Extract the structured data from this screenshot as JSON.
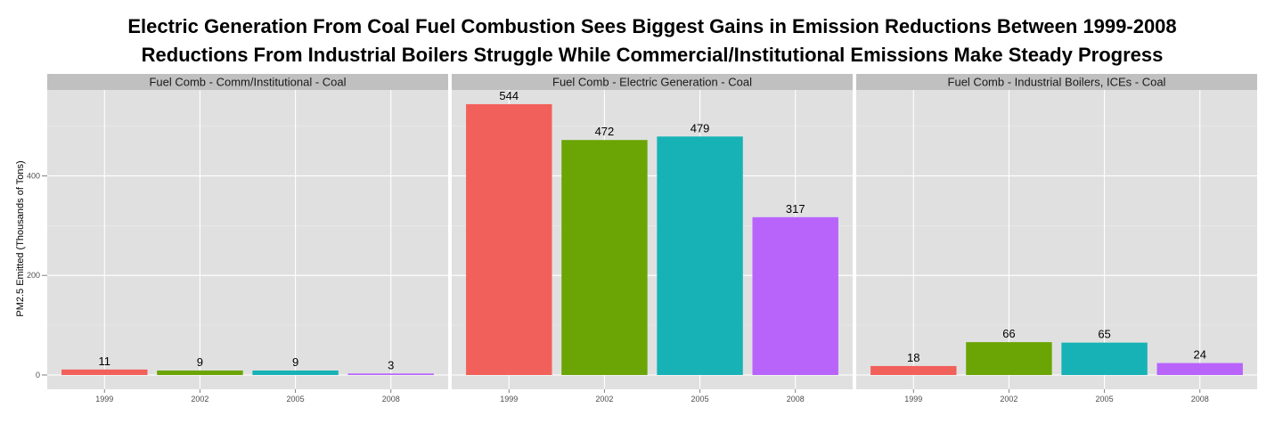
{
  "chart_data": {
    "type": "bar",
    "title": "Electric Generation From Coal Fuel Combustion Sees Biggest Gains in Emission Reductions Between 1999-2008",
    "subtitle": "Reductions From Industrial Boilers Struggle While Commercial/Institutional Emissions Make Steady Progress",
    "xlabel": "",
    "ylabel": "PM2.5 Emitted (Thousands of Tons)",
    "ylim": [
      0,
      560
    ],
    "yticks": [
      0,
      200,
      400
    ],
    "grid": true,
    "categories": [
      "1999",
      "2002",
      "2005",
      "2008"
    ],
    "colors": [
      "#F2605B",
      "#6BA505",
      "#17B2B6",
      "#B864FB"
    ],
    "panel_background": "#E0E0E0",
    "strip_background": "#C0C0C0",
    "panels": [
      {
        "strip": "Fuel Comb - Comm/Institutional - Coal",
        "values": [
          11,
          9,
          9,
          3
        ]
      },
      {
        "strip": "Fuel Comb - Electric Generation - Coal",
        "values": [
          544,
          472,
          479,
          317
        ]
      },
      {
        "strip": "Fuel Comb - Industrial Boilers, ICEs - Coal",
        "values": [
          18,
          66,
          65,
          24
        ]
      }
    ]
  }
}
